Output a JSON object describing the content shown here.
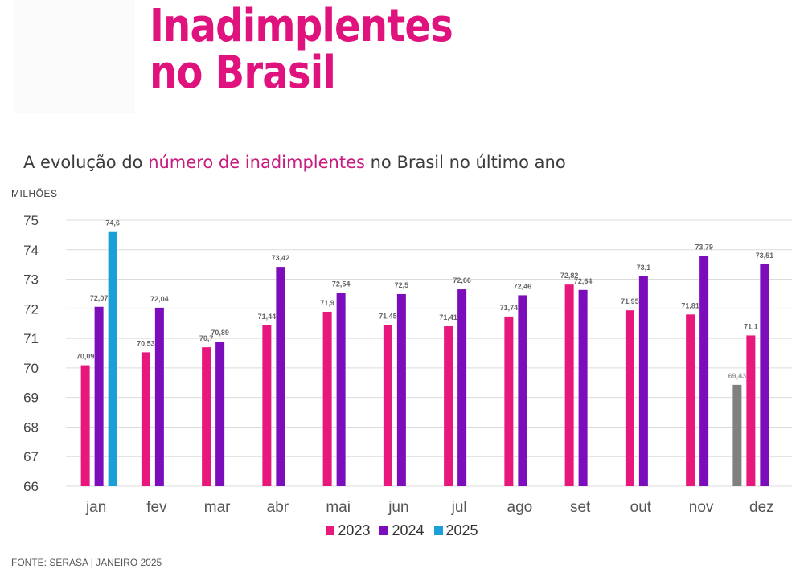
{
  "header": {
    "title_line1": "Inadimplentes",
    "title_line2": "no Brasil",
    "subtitle_before": "A evolução do ",
    "subtitle_highlight": "número de inadimplentes",
    "subtitle_after": " no Brasil no último ano"
  },
  "source": "FONTE: SERASA | JANEIRO 2025",
  "chart_data": {
    "type": "bar",
    "ylabel": "MILHÕES",
    "ylim": [
      66,
      75
    ],
    "yticks": [
      66,
      67,
      68,
      69,
      70,
      71,
      72,
      73,
      74,
      75
    ],
    "grid": true,
    "legend_position": "bottom",
    "categories": [
      "jan",
      "fev",
      "mar",
      "abr",
      "mai",
      "jun",
      "jul",
      "ago",
      "set",
      "out",
      "nov",
      "dez"
    ],
    "series": [
      {
        "name": "2023",
        "color": "#e8177c",
        "values": [
          70.09,
          70.53,
          70.7,
          71.44,
          71.9,
          71.45,
          71.41,
          71.74,
          72.82,
          71.95,
          71.81,
          71.1
        ],
        "labels": [
          "70,09",
          "70,53",
          "70,7",
          "71,44",
          "71,9",
          "71,45",
          "71,41",
          "71,74",
          "72,82",
          "71,95",
          "71,81",
          "71,1"
        ]
      },
      {
        "name": "2024",
        "color": "#7c0dbb",
        "values": [
          72.07,
          72.04,
          70.89,
          73.42,
          72.54,
          72.5,
          72.66,
          72.46,
          72.64,
          73.1,
          73.79,
          73.51
        ],
        "labels": [
          "72,07",
          "72,04",
          "70,89",
          "73,42",
          "72,54",
          "72,5",
          "72,66",
          "72,46",
          "72,64",
          "73,1",
          "73,79",
          "73,51"
        ]
      },
      {
        "name": "2025",
        "color": "#1aa0d6",
        "values": [
          74.6,
          null,
          null,
          null,
          null,
          null,
          null,
          null,
          null,
          null,
          null,
          null
        ],
        "labels": [
          "74,6",
          "",
          "",
          "",
          "",
          "",
          "",
          "",
          "",
          "",
          "",
          ""
        ]
      }
    ],
    "extra_bar": {
      "category": "dez",
      "value": 69.43,
      "label": "69,43",
      "color": "#808080",
      "label_color": "#9a9a9a"
    }
  }
}
